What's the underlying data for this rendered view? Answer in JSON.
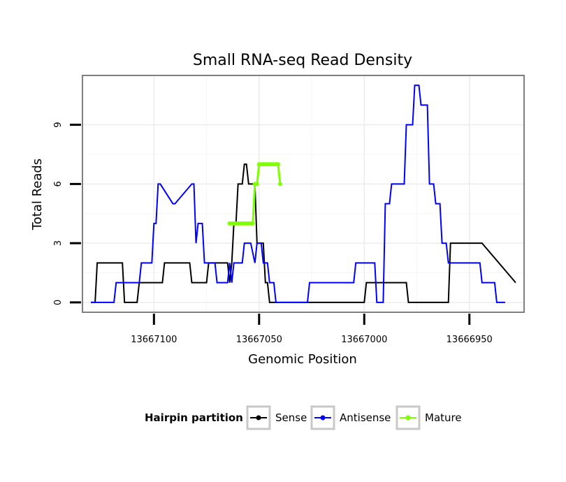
{
  "chart_data": {
    "type": "line",
    "title": "Small RNA-seq Read Density",
    "xlabel": "Genomic Position",
    "ylabel": "Total Reads",
    "x_reversed": true,
    "xlim": [
      13667134,
      13666924
    ],
    "ylim": [
      -0.5,
      11.5
    ],
    "x_ticks": [
      13667100,
      13667050,
      13667000,
      13666950
    ],
    "x_tick_labels": [
      "13667100",
      "13667050",
      "13667000",
      "13666950"
    ],
    "y_ticks": [
      0,
      3,
      6,
      9
    ],
    "y_tick_labels": [
      "0",
      "3",
      "6",
      "9"
    ],
    "grid": true,
    "legend": {
      "title": "Hairpin partition",
      "position": "bottom",
      "entries": [
        {
          "name": "Sense",
          "color": "#000000"
        },
        {
          "name": "Antisense",
          "color": "#0000ff"
        },
        {
          "name": "Mature",
          "color": "#7fff00"
        }
      ]
    },
    "series": [
      {
        "name": "Sense",
        "color": "#000000",
        "x": [
          13667130,
          13667128,
          13667127,
          13667115,
          13667114,
          13667108,
          13667107,
          13667096,
          13667095,
          13667083,
          13667082,
          13667075,
          13667074,
          13667065,
          13667064,
          13667063,
          13667062,
          13667061,
          13667060,
          13667058,
          13667057,
          13667056,
          13667055,
          13667052,
          13667051,
          13667048,
          13667047,
          13667046,
          13667045,
          13667040,
          13667039,
          13667000,
          13666999,
          13666980,
          13666979,
          13666960,
          13666959,
          13666945,
          13666944,
          13666928
        ],
        "y": [
          0,
          0,
          2,
          2,
          0,
          0,
          1,
          1,
          2,
          2,
          1,
          1,
          2,
          2,
          1,
          2,
          4,
          4,
          6,
          6,
          7,
          7,
          6,
          6,
          3,
          3,
          1,
          1,
          0,
          0,
          0,
          0,
          1,
          1,
          0,
          0,
          3,
          3,
          3,
          1
        ]
      },
      {
        "name": "Antisense",
        "color": "#0000ff",
        "x": [
          13667130,
          13667119,
          13667118,
          13667107,
          13667106,
          13667101,
          13667100,
          13667099,
          13667098,
          13667097,
          13667091,
          13667090,
          13667082,
          13667081,
          13667080,
          13667079,
          13667077,
          13667076,
          13667071,
          13667070,
          13667065,
          13667064,
          13667063,
          13667062,
          13667058,
          13667057,
          13667054,
          13667052,
          13667051,
          13667049,
          13667048,
          13667046,
          13667045,
          13667043,
          13667042,
          13667040,
          13667039,
          13667027,
          13667026,
          13667005,
          13667004,
          13666995,
          13666994,
          13666991,
          13666990,
          13666988,
          13666987,
          13666981,
          13666980,
          13666977,
          13666976,
          13666974,
          13666973,
          13666970,
          13666969,
          13666967,
          13666966,
          13666964,
          13666963,
          13666961,
          13666960,
          13666945,
          13666944,
          13666938,
          13666937,
          13666933
        ],
        "y": [
          0,
          0,
          1,
          1,
          2,
          2,
          4,
          4,
          6,
          6,
          5,
          5,
          6,
          6,
          3,
          4,
          4,
          2,
          2,
          1,
          1,
          2,
          1,
          2,
          2,
          3,
          3,
          2,
          3,
          3,
          2,
          2,
          1,
          1,
          0,
          0,
          0,
          0,
          1,
          1,
          2,
          2,
          0,
          0,
          5,
          5,
          6,
          6,
          9,
          9,
          11,
          11,
          10,
          10,
          6,
          6,
          5,
          5,
          3,
          3,
          2,
          2,
          1,
          1,
          0,
          0
        ]
      },
      {
        "name": "Mature",
        "color": "#7fff00",
        "marker": true,
        "x": [
          13667064,
          13667063,
          13667062,
          13667061,
          13667060,
          13667059,
          13667058,
          13667057,
          13667056,
          13667055,
          13667054,
          13667053,
          13667052,
          13667051,
          13667050,
          13667049,
          13667048,
          13667047,
          13667046,
          13667045,
          13667044,
          13667043,
          13667042,
          13667041,
          13667040
        ],
        "y": [
          4,
          4,
          4,
          4,
          4,
          4,
          4,
          4,
          4,
          4,
          4,
          4,
          6,
          6,
          7,
          7,
          7,
          7,
          7,
          7,
          7,
          7,
          7,
          7,
          6
        ]
      }
    ]
  }
}
